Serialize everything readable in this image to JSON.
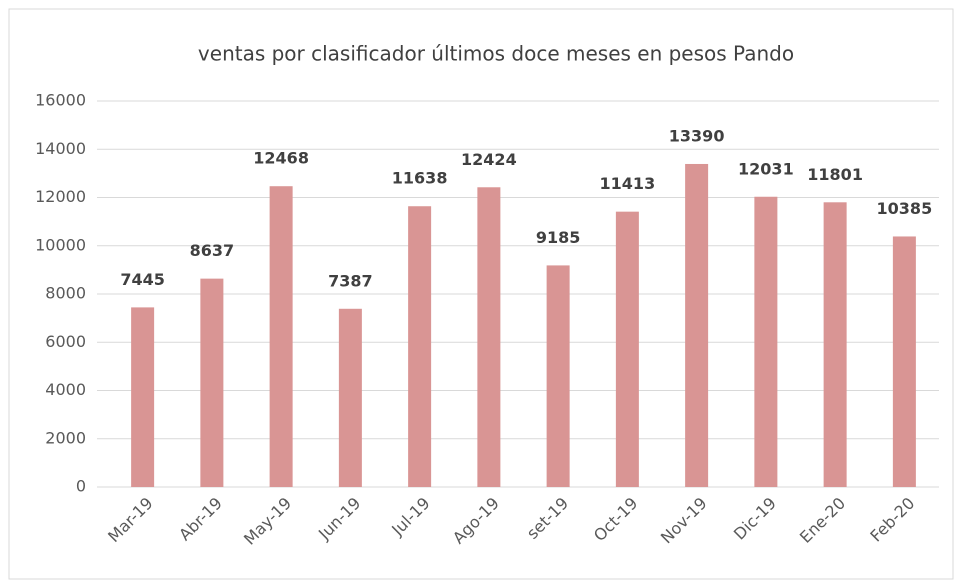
{
  "chart_data": {
    "type": "bar",
    "title": "ventas por clasificador últimos doce meses en pesos Pando",
    "categories": [
      "Mar-19",
      "Abr-19",
      "May-19",
      "Jun-19",
      "Jul-19",
      "Ago-19",
      "set-19",
      "Oct-19",
      "Nov-19",
      "Dic-19",
      "Ene-20",
      "Feb-20"
    ],
    "values": [
      7445,
      8637,
      12468,
      7387,
      11638,
      12424,
      9185,
      11413,
      13390,
      12031,
      11801,
      10385
    ],
    "color": "#d99594",
    "ylim": [
      0,
      16000
    ],
    "yticks": [
      0,
      2000,
      4000,
      6000,
      8000,
      10000,
      12000,
      14000,
      16000
    ],
    "grid": true
  }
}
